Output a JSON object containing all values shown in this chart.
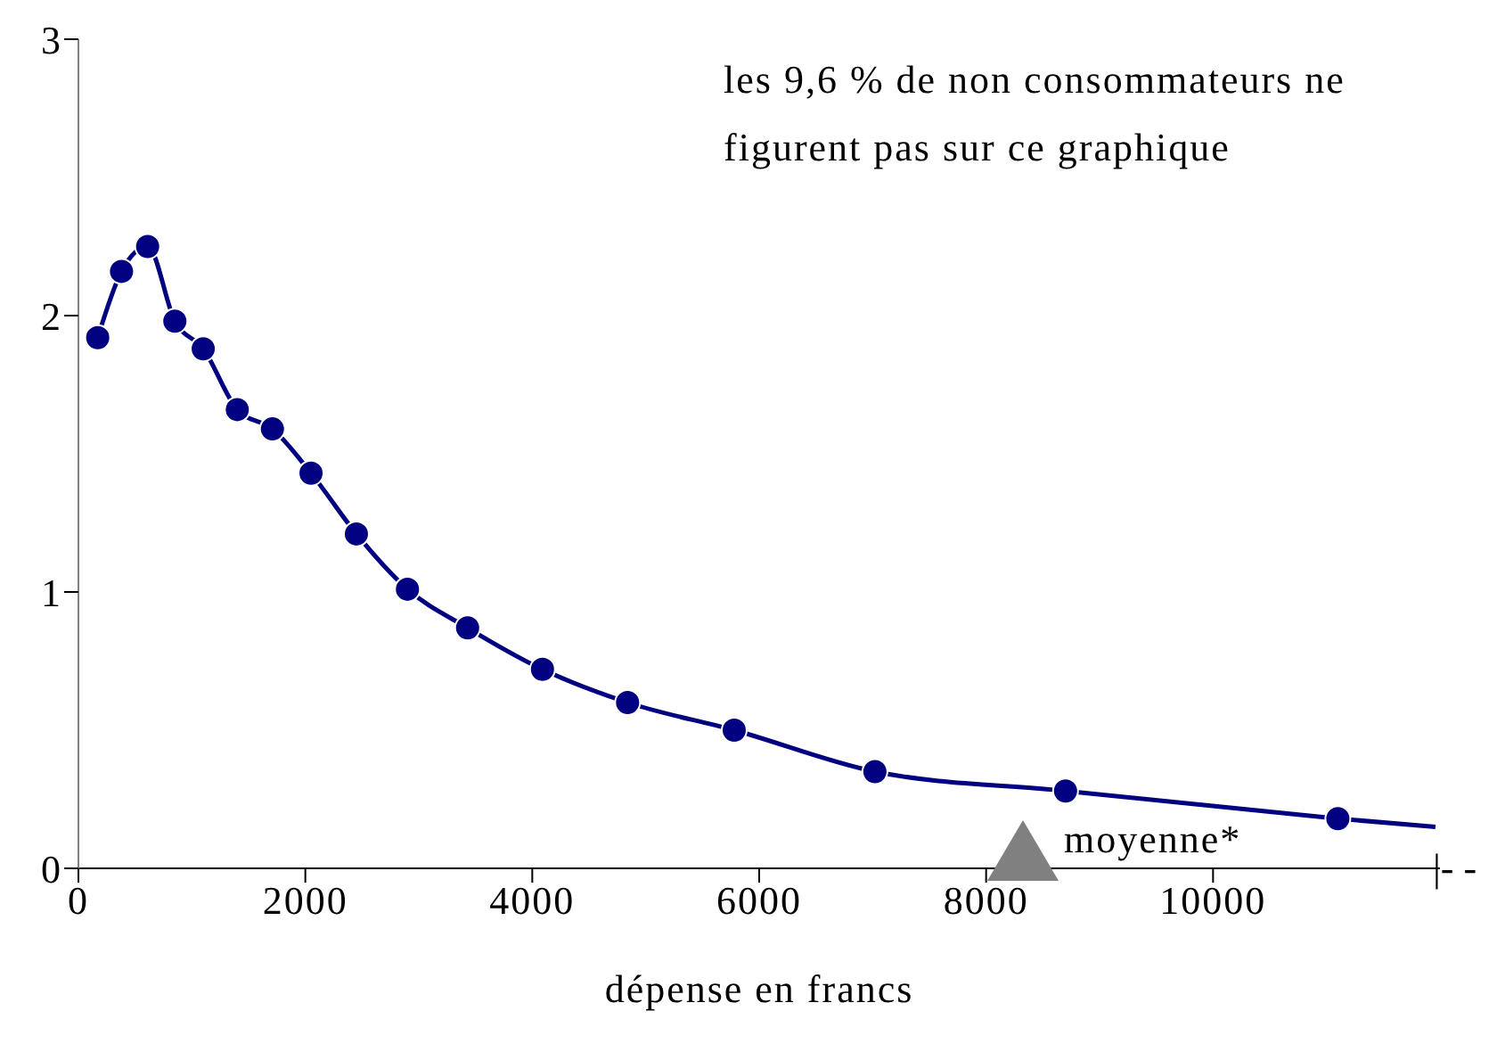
{
  "chart_data": {
    "type": "line",
    "xlabel": "dépense en francs",
    "xlim": [
      0,
      12000
    ],
    "xticks": [
      0,
      2000,
      4000,
      6000,
      8000,
      10000
    ],
    "ylim": [
      0,
      3
    ],
    "yticks": [
      0,
      1,
      2,
      3
    ],
    "marker": "circle",
    "line_style": "solid",
    "series": [
      {
        "color": "#000080",
        "x": [
          170,
          380,
          610,
          850,
          1100,
          1400,
          1710,
          2050,
          2450,
          2900,
          3430,
          4090,
          4840,
          5780,
          7020,
          8700,
          11100
        ],
        "values": [
          1.92,
          2.16,
          2.25,
          1.98,
          1.88,
          1.66,
          1.59,
          1.43,
          1.21,
          1.01,
          0.87,
          0.72,
          0.6,
          0.5,
          0.35,
          0.28,
          0.18
        ]
      },
      {
        "color": "#000080",
        "marker": "none",
        "x": [
          11100,
          11960
        ],
        "values": [
          0.18,
          0.15
        ]
      }
    ],
    "annotations": [
      "les 9,6 % de non consommateurs ne figurent pas sur ce graphique",
      "moyenne*",
      "|- -"
    ]
  }
}
